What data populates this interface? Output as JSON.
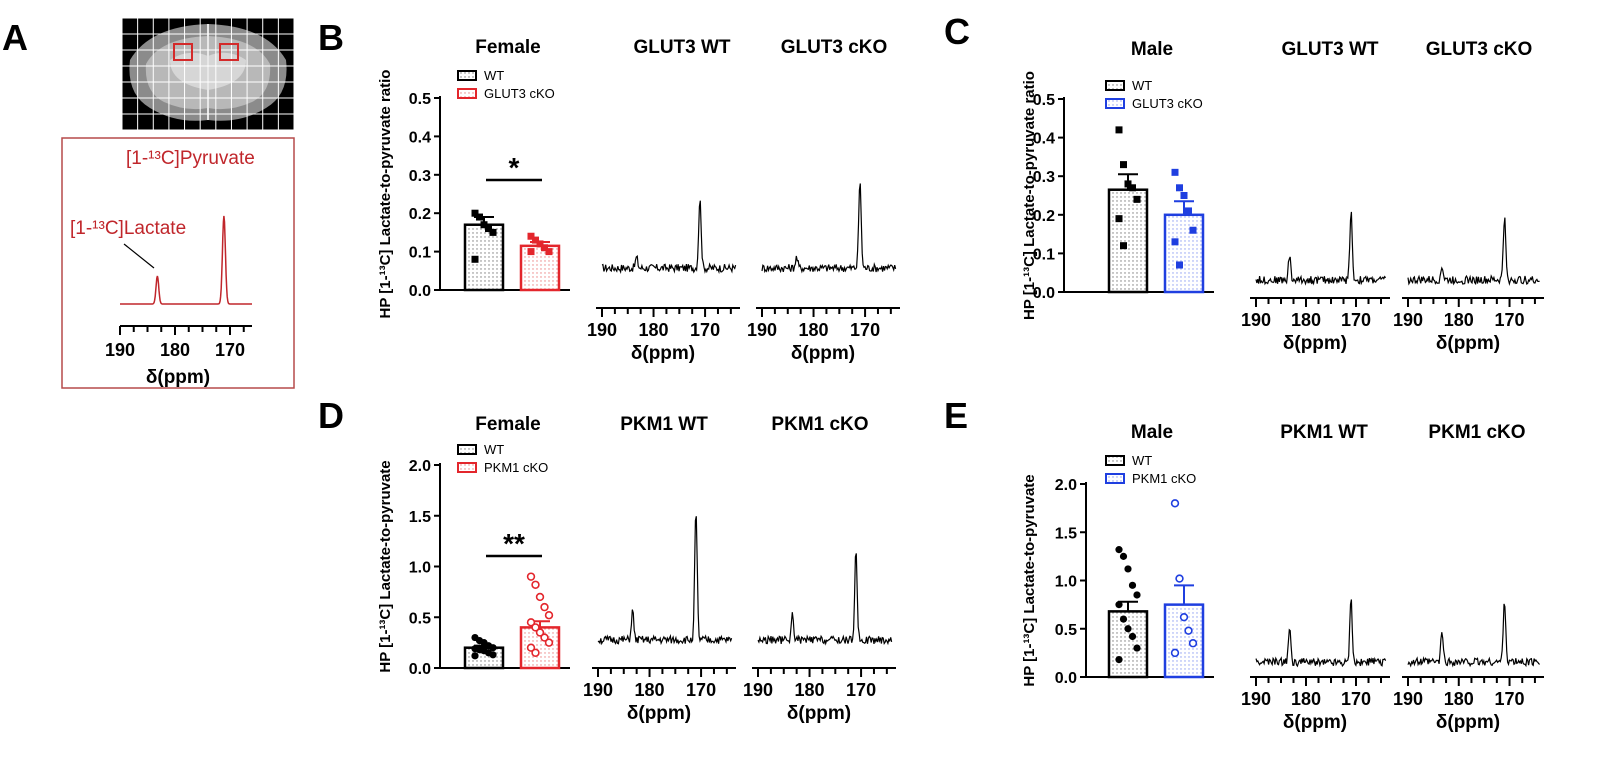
{
  "colors": {
    "red": "#e3262c",
    "blue": "#1f3fe0",
    "black": "#000000",
    "dark_red": "#c0262b"
  },
  "panel_labels": {
    "A": "A",
    "B": "B",
    "C": "C",
    "D": "D",
    "E": "E"
  },
  "x_axis": {
    "label": "δ(ppm)",
    "ticks": [
      "190",
      "180",
      "170"
    ]
  },
  "panel_a": {
    "pyruvate_label": "[1-¹³C]Pyruvate",
    "lactate_label": "[1-¹³C]Lactate",
    "xlabel": "δ(ppm)",
    "ticks": [
      "190",
      "180",
      "170"
    ]
  },
  "chart_data": [
    {
      "id": "B",
      "type": "bar",
      "title": "Female",
      "ylabel": "HP [1-¹³C] Lactate-to-pyruvate ratio",
      "ylim": [
        0,
        0.5
      ],
      "yticks": [
        "0.0",
        "0.1",
        "0.2",
        "0.3",
        "0.4",
        "0.5"
      ],
      "categories": [
        "WT",
        "GLUT3 cKO"
      ],
      "series": [
        {
          "name": "WT",
          "mean": 0.17,
          "sem": 0.02,
          "points": [
            0.2,
            0.19,
            0.17,
            0.16,
            0.15,
            0.08
          ]
        },
        {
          "name": "GLUT3 cKO",
          "mean": 0.115,
          "sem": 0.01,
          "points": [
            0.14,
            0.13,
            0.12,
            0.11,
            0.1,
            0.1
          ]
        }
      ],
      "significance": "*",
      "kocolor": "red",
      "filledKO": true,
      "spectra": [
        {
          "title": "GLUT3 WT",
          "lac": 0.3,
          "pyr": 2.0
        },
        {
          "title": "GLUT3 cKO",
          "lac": 0.3,
          "pyr": 2.5
        }
      ]
    },
    {
      "id": "C",
      "type": "bar",
      "title": "Male",
      "ylabel": "HP [1-¹³C] Lactate-to-pyruvate ratio",
      "ylim": [
        0,
        0.5
      ],
      "yticks": [
        "0.0",
        "0.1",
        "0.2",
        "0.3",
        "0.4",
        "0.5"
      ],
      "categories": [
        "WT",
        "GLUT3 cKO"
      ],
      "series": [
        {
          "name": "WT",
          "mean": 0.265,
          "sem": 0.04,
          "points": [
            0.42,
            0.33,
            0.28,
            0.27,
            0.24,
            0.19,
            0.12
          ]
        },
        {
          "name": "GLUT3 cKO",
          "mean": 0.2,
          "sem": 0.035,
          "points": [
            0.31,
            0.27,
            0.25,
            0.21,
            0.16,
            0.13,
            0.07
          ]
        }
      ],
      "significance": "",
      "kocolor": "blue",
      "filledKO": true,
      "spectra": [
        {
          "title": "GLUT3 WT",
          "lac": 0.7,
          "pyr": 2.0
        },
        {
          "title": "GLUT3 cKO",
          "lac": 0.4,
          "pyr": 1.8
        }
      ]
    },
    {
      "id": "D",
      "type": "bar",
      "title": "Female",
      "ylabel": "HP [1-¹³C] Lactate-to-pyruvate",
      "ylim": [
        0,
        2.0
      ],
      "yticks": [
        "0.0",
        "0.5",
        "1.0",
        "1.5",
        "2.0"
      ],
      "categories": [
        "WT",
        "PKM1 cKO"
      ],
      "series": [
        {
          "name": "WT",
          "mean": 0.2,
          "sem": 0.02,
          "points": [
            0.3,
            0.27,
            0.25,
            0.22,
            0.2,
            0.19,
            0.18,
            0.17,
            0.15,
            0.13,
            0.12
          ]
        },
        {
          "name": "PKM1 cKO",
          "mean": 0.4,
          "sem": 0.06,
          "points": [
            0.9,
            0.82,
            0.7,
            0.6,
            0.52,
            0.45,
            0.4,
            0.35,
            0.3,
            0.25,
            0.2,
            0.15
          ]
        }
      ],
      "significance": "**",
      "kocolor": "red",
      "filledKO": false,
      "spectra": [
        {
          "title": "PKM1 WT",
          "lac": 0.8,
          "pyr": 3.5
        },
        {
          "title": "PKM1 cKO",
          "lac": 0.7,
          "pyr": 2.4
        }
      ]
    },
    {
      "id": "E",
      "type": "bar",
      "title": "Male",
      "ylabel": "HP [1-¹³C] Lactate-to-pyruvate",
      "ylim": [
        0,
        2.0
      ],
      "yticks": [
        "0.0",
        "0.5",
        "1.0",
        "1.5",
        "2.0"
      ],
      "categories": [
        "WT",
        "PKM1 cKO"
      ],
      "series": [
        {
          "name": "WT",
          "mean": 0.68,
          "sem": 0.1,
          "points": [
            1.32,
            1.25,
            1.12,
            0.95,
            0.85,
            0.75,
            0.6,
            0.5,
            0.42,
            0.3,
            0.18
          ]
        },
        {
          "name": "PKM1 cKO",
          "mean": 0.75,
          "sem": 0.2,
          "points": [
            1.8,
            1.02,
            0.62,
            0.48,
            0.35,
            0.25
          ]
        }
      ],
      "significance": "",
      "kocolor": "blue",
      "filledKO": false,
      "spectra": [
        {
          "title": "PKM1 WT",
          "lac": 1.0,
          "pyr": 1.8
        },
        {
          "title": "PKM1 cKO",
          "lac": 0.9,
          "pyr": 1.8
        }
      ]
    }
  ]
}
